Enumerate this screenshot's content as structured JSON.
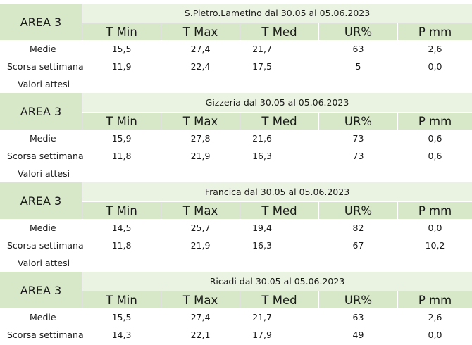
{
  "columns": [
    "T Min",
    "T Max",
    "T Med",
    "UR%",
    "P mm"
  ],
  "area_label": "AREA 3",
  "row_labels": {
    "medie": "Medie",
    "scorsa": "Scorsa settimana",
    "attesi": "Valori attesi"
  },
  "colors": {
    "header_fill": "#d7e8c8",
    "station_fill": "#eaf3e1"
  },
  "tables": [
    {
      "station": "S.Pietro.Lametino dal 30.05 al 05.06.2023",
      "medie": [
        "15,5",
        "27,4",
        "21,7",
        "63",
        "2,6"
      ],
      "scorsa": [
        "11,9",
        "22,4",
        "17,5",
        "5",
        "0,0"
      ],
      "attesi": [
        "",
        "",
        "",
        "",
        ""
      ]
    },
    {
      "station": "Gizzeria dal 30.05 al 05.06.2023",
      "medie": [
        "15,9",
        "27,8",
        "21,6",
        "73",
        "0,6"
      ],
      "scorsa": [
        "11,8",
        "21,9",
        "16,3",
        "73",
        "0,6"
      ],
      "attesi": [
        "",
        "",
        "",
        "",
        ""
      ]
    },
    {
      "station": "Francica dal 30.05 al 05.06.2023",
      "medie": [
        "14,5",
        "25,7",
        "19,4",
        "82",
        "0,0"
      ],
      "scorsa": [
        "11,8",
        "21,9",
        "16,3",
        "67",
        "10,2"
      ],
      "attesi": [
        "",
        "",
        "",
        "",
        ""
      ]
    },
    {
      "station": "Ricadi  dal 30.05 al 05.06.2023",
      "medie": [
        "15,5",
        "27,4",
        "21,7",
        "63",
        "2,6"
      ],
      "scorsa": [
        "14,3",
        "22,1",
        "17,9",
        "49",
        "0,0"
      ],
      "attesi": null
    }
  ]
}
